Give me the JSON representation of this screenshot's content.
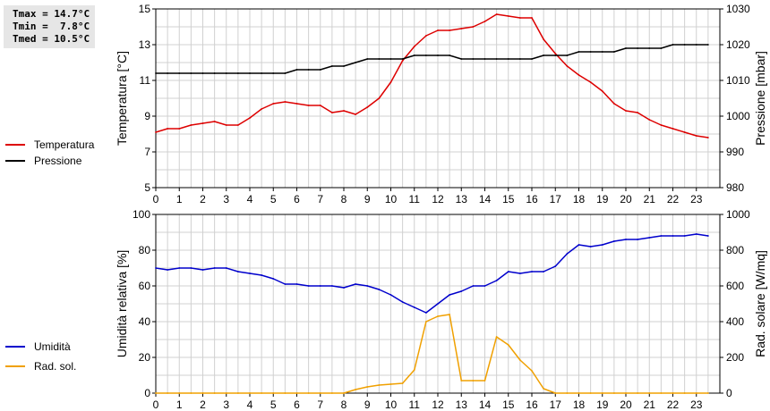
{
  "stats": {
    "tmax": "Tmax = 14.7°C",
    "tmin": "Tmin =  7.8°C",
    "tmed": "Tmed = 10.5°C"
  },
  "colors": {
    "temperature": "#dd0000",
    "pressure": "#000000",
    "humidity": "#0000cc",
    "radiation": "#f0a000",
    "grid": "#d0d0d0"
  },
  "chart_data": [
    {
      "type": "line",
      "x_ticks": [
        0,
        1,
        2,
        3,
        4,
        5,
        6,
        7,
        8,
        9,
        10,
        11,
        12,
        13,
        14,
        15,
        16,
        17,
        18,
        19,
        20,
        21,
        22,
        23
      ],
      "xlim": [
        0,
        24
      ],
      "ylabel_left": "Temperatura [°C]",
      "ylim_left": [
        5,
        15
      ],
      "yticks_left": [
        5,
        7,
        9,
        11,
        13,
        15
      ],
      "ylabel_right": "Pressione [mbar]",
      "ylim_right": [
        980,
        1030
      ],
      "yticks_right": [
        980,
        990,
        1000,
        1010,
        1020,
        1030
      ],
      "grid": true,
      "legend_position": "left",
      "series": [
        {
          "name": "Temperatura",
          "axis": "left",
          "color": "#dd0000",
          "x": [
            0,
            0.5,
            1,
            1.5,
            2,
            2.5,
            3,
            3.5,
            4,
            4.5,
            5,
            5.5,
            6,
            6.5,
            7,
            7.5,
            8,
            8.5,
            9,
            9.5,
            10,
            10.5,
            11,
            11.5,
            12,
            12.5,
            13,
            13.5,
            14,
            14.5,
            15,
            15.5,
            16,
            16.5,
            17,
            17.5,
            18,
            18.5,
            19,
            19.5,
            20,
            20.5,
            21,
            21.5,
            22,
            22.5,
            23,
            23.5
          ],
          "y": [
            8.1,
            8.3,
            8.3,
            8.5,
            8.6,
            8.7,
            8.5,
            8.5,
            8.9,
            9.4,
            9.7,
            9.8,
            9.7,
            9.6,
            9.6,
            9.2,
            9.3,
            9.1,
            9.5,
            10.0,
            10.9,
            12.1,
            12.9,
            13.5,
            13.8,
            13.8,
            13.9,
            14.0,
            14.3,
            14.7,
            14.6,
            14.5,
            14.5,
            13.3,
            12.5,
            11.8,
            11.3,
            10.9,
            10.4,
            9.7,
            9.3,
            9.2,
            8.8,
            8.5,
            8.3,
            8.1,
            7.9,
            7.8
          ]
        },
        {
          "name": "Pressione",
          "axis": "right",
          "color": "#000000",
          "x": [
            0,
            0.5,
            1,
            1.5,
            2,
            2.5,
            3,
            3.5,
            4,
            4.5,
            5,
            5.5,
            6,
            6.5,
            7,
            7.5,
            8,
            8.5,
            9,
            9.5,
            10,
            10.5,
            11,
            11.5,
            12,
            12.5,
            13,
            13.5,
            14,
            14.5,
            15,
            15.5,
            16,
            16.5,
            17,
            17.5,
            18,
            18.5,
            19,
            19.5,
            20,
            20.5,
            21,
            21.5,
            22,
            22.5,
            23,
            23.5
          ],
          "y": [
            1012,
            1012,
            1012,
            1012,
            1012,
            1012,
            1012,
            1012,
            1012,
            1012,
            1012,
            1012,
            1013,
            1013,
            1013,
            1014,
            1014,
            1015,
            1016,
            1016,
            1016,
            1016,
            1017,
            1017,
            1017,
            1017,
            1016,
            1016,
            1016,
            1016,
            1016,
            1016,
            1016,
            1017,
            1017,
            1017,
            1018,
            1018,
            1018,
            1018,
            1019,
            1019,
            1019,
            1019,
            1020,
            1020,
            1020,
            1020
          ]
        }
      ]
    },
    {
      "type": "line",
      "x_ticks": [
        0,
        1,
        2,
        3,
        4,
        5,
        6,
        7,
        8,
        9,
        10,
        11,
        12,
        13,
        14,
        15,
        16,
        17,
        18,
        19,
        20,
        21,
        22,
        23
      ],
      "xlim": [
        0,
        24
      ],
      "ylabel_left": "Umidità relativa [%]",
      "ylim_left": [
        0,
        100
      ],
      "yticks_left": [
        0,
        20,
        40,
        60,
        80,
        100
      ],
      "ylabel_right": "Rad. solare [W/mq]",
      "ylim_right": [
        0,
        1000
      ],
      "yticks_right": [
        0,
        200,
        400,
        600,
        800,
        1000
      ],
      "grid": true,
      "legend_position": "left",
      "series": [
        {
          "name": "Umidità",
          "axis": "left",
          "color": "#0000cc",
          "x": [
            0,
            0.5,
            1,
            1.5,
            2,
            2.5,
            3,
            3.5,
            4,
            4.5,
            5,
            5.5,
            6,
            6.5,
            7,
            7.5,
            8,
            8.5,
            9,
            9.5,
            10,
            10.5,
            11,
            11.5,
            12,
            12.5,
            13,
            13.5,
            14,
            14.5,
            15,
            15.5,
            16,
            16.5,
            17,
            17.5,
            18,
            18.5,
            19,
            19.5,
            20,
            20.5,
            21,
            21.5,
            22,
            22.5,
            23,
            23.5
          ],
          "y": [
            70,
            69,
            70,
            70,
            69,
            70,
            70,
            68,
            67,
            66,
            64,
            61,
            61,
            60,
            60,
            60,
            59,
            61,
            60,
            58,
            55,
            51,
            48,
            45,
            50,
            55,
            57,
            60,
            60,
            63,
            68,
            67,
            68,
            68,
            71,
            78,
            83,
            82,
            83,
            85,
            86,
            86,
            87,
            88,
            88,
            88,
            89,
            88
          ]
        },
        {
          "name": "Rad. sol.",
          "axis": "right",
          "color": "#f0a000",
          "x": [
            0,
            0.5,
            1,
            1.5,
            2,
            2.5,
            3,
            3.5,
            4,
            4.5,
            5,
            5.5,
            6,
            6.5,
            7,
            7.5,
            8,
            8.5,
            9,
            9.5,
            10,
            10.5,
            11,
            11.5,
            12,
            12.5,
            13,
            13.5,
            14,
            14.5,
            15,
            15.5,
            16,
            16.5,
            17,
            17.5,
            18,
            18.5,
            19,
            19.5,
            20,
            20.5,
            21,
            21.5,
            22,
            22.5,
            23,
            23.5
          ],
          "y": [
            0,
            0,
            0,
            0,
            0,
            0,
            0,
            0,
            0,
            0,
            0,
            0,
            0,
            0,
            0,
            0,
            0,
            20,
            35,
            45,
            50,
            55,
            130,
            400,
            430,
            440,
            70,
            70,
            70,
            315,
            270,
            185,
            125,
            25,
            0,
            0,
            0,
            0,
            0,
            0,
            0,
            0,
            0,
            0,
            0,
            0,
            0,
            0
          ]
        }
      ]
    }
  ]
}
